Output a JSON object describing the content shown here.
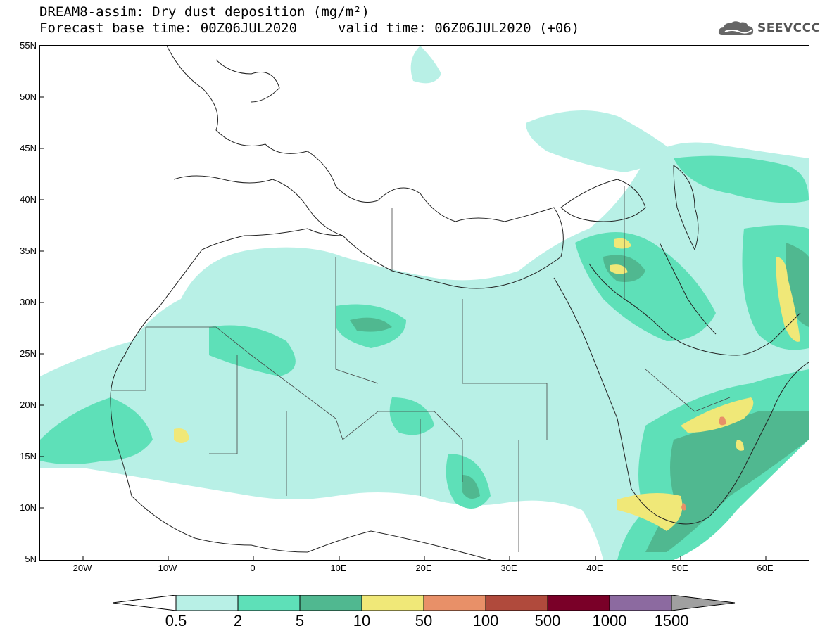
{
  "title": {
    "line1": "DREAM8-assim: Dry dust deposition (mg/m²)",
    "base_time": "Forecast base time: 00Z06JUL2020",
    "valid_time": "valid time: 06Z06JUL2020 (+06)"
  },
  "logo": {
    "text": "SEEVCCC",
    "icon": "cloud-icon"
  },
  "axes": {
    "lat_labels": [
      "55N",
      "50N",
      "45N",
      "40N",
      "35N",
      "30N",
      "25N",
      "20N",
      "15N",
      "10N",
      "5N"
    ],
    "lon_labels": [
      "20W",
      "10W",
      "0",
      "10E",
      "20E",
      "30E",
      "40E",
      "50E",
      "60E"
    ],
    "lat_range": [
      5,
      55
    ],
    "lon_range": [
      -25,
      65
    ]
  },
  "colorbar": {
    "labels": [
      "0.5",
      "2",
      "5",
      "10",
      "50",
      "100",
      "500",
      "1000",
      "1500"
    ],
    "colors": [
      "#b8f0e6",
      "#5ee0b8",
      "#50b890",
      "#f0e878",
      "#e89068",
      "#b04a3c",
      "#7a0028",
      "#8c6aa0"
    ],
    "arrow_low": "#ffffff",
    "arrow_high": "#a0a0a0"
  }
}
